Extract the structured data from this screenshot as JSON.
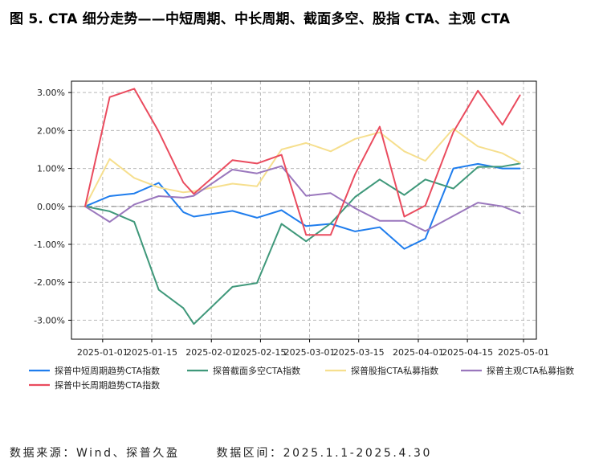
{
  "title": "图 5. CTA 细分走势——中短周期、中长周期、截面多空、股指 CTA、主观 CTA",
  "footer": {
    "source_label": "数据来源：",
    "source_value": "Wind、探普久盈",
    "range_label": "数据区间：",
    "range_value": "2025.1.1-2025.4.30"
  },
  "chart_data": {
    "type": "line",
    "x": [
      "2024-12-27",
      "2025-01-03",
      "2025-01-10",
      "2025-01-17",
      "2025-01-24",
      "2025-01-27",
      "2025-02-07",
      "2025-02-14",
      "2025-02-21",
      "2025-02-28",
      "2025-03-07",
      "2025-03-14",
      "2025-03-21",
      "2025-03-28",
      "2025-04-03",
      "2025-04-11",
      "2025-04-18",
      "2025-04-25",
      "2025-04-30"
    ],
    "xticks": [
      "2025-01-01",
      "2025-01-15",
      "2025-02-01",
      "2025-02-15",
      "2025-03-01",
      "2025-03-15",
      "2025-04-01",
      "2025-04-15",
      "2025-05-01"
    ],
    "ylim": [
      -0.035,
      0.033
    ],
    "yticks": [
      0.03,
      0.02,
      0.01,
      0.0,
      -0.01,
      -0.02,
      -0.03
    ],
    "ytick_labels": [
      "3.00%",
      "2.00%",
      "1.00%",
      "0.00%",
      "-1.00%",
      "-2.00%",
      "-3.00%"
    ],
    "zero_line": true,
    "grid": true,
    "legend_position": "bottom",
    "series": [
      {
        "name": "探普中短周期趋势CTA指数",
        "color": "#1f7ded",
        "values": [
          0.0,
          0.0027,
          0.0034,
          0.0062,
          -0.0015,
          -0.0027,
          -0.0012,
          -0.003,
          -0.001,
          -0.0052,
          -0.0046,
          -0.0066,
          -0.0055,
          -0.0112,
          -0.0085,
          0.01,
          0.0112,
          0.01,
          0.01
        ]
      },
      {
        "name": "探普截面多空CTA指数",
        "color": "#3f987a",
        "values": [
          0.0,
          -0.0013,
          -0.0041,
          -0.022,
          -0.0268,
          -0.031,
          -0.0212,
          -0.0202,
          -0.0046,
          -0.0092,
          -0.0045,
          0.0025,
          0.0071,
          0.003,
          0.0071,
          0.0047,
          0.0104,
          0.0105,
          0.0113
        ]
      },
      {
        "name": "探普股指CTA私募指数",
        "color": "#f6df8e",
        "values": [
          0.0,
          0.0125,
          0.0075,
          0.005,
          0.0037,
          0.004,
          0.006,
          0.0053,
          0.015,
          0.0167,
          0.0145,
          0.0178,
          0.0195,
          0.0145,
          0.012,
          0.0205,
          0.0158,
          0.014,
          0.0115
        ]
      },
      {
        "name": "探普主观CTA私募指数",
        "color": "#9a77bd",
        "values": [
          0.0,
          -0.0041,
          0.0005,
          0.0027,
          0.0023,
          0.0028,
          0.0097,
          0.0087,
          0.0106,
          0.0028,
          0.0035,
          -0.0005,
          -0.0038,
          -0.0038,
          -0.0065,
          -0.0025,
          0.001,
          0.0,
          -0.0018
        ]
      },
      {
        "name": "探普中长周期趋势CTA指数",
        "color": "#ea4b5e",
        "values": [
          0.0,
          0.0288,
          0.031,
          0.0197,
          0.0063,
          0.0033,
          0.0122,
          0.0113,
          0.0136,
          -0.0075,
          -0.0075,
          0.0085,
          0.021,
          -0.0027,
          0.0002,
          0.0196,
          0.0305,
          0.0215,
          0.0293
        ]
      }
    ]
  }
}
